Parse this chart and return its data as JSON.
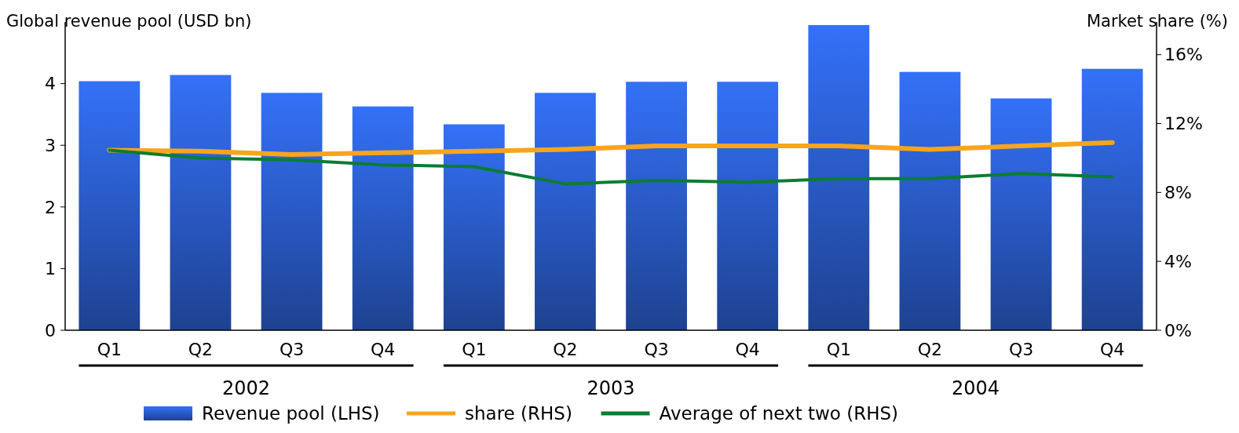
{
  "chart_data": {
    "type": "bar",
    "ylabel": "Global revenue pool (USD bn)",
    "y2label": "Market share (%)",
    "categories": [
      "Q1",
      "Q2",
      "Q3",
      "Q4",
      "Q1",
      "Q2",
      "Q3",
      "Q4",
      "Q1",
      "Q2",
      "Q3",
      "Q4"
    ],
    "series": [
      {
        "name": "Revenue pool (LHS)",
        "color": "#2a5bc8",
        "values": [
          4.04,
          4.14,
          3.85,
          3.63,
          3.34,
          3.85,
          4.03,
          4.03,
          4.95,
          4.19,
          3.76,
          4.24
        ]
      },
      {
        "name": "share (RHS)",
        "type": "line",
        "axis": "y2",
        "color": "#f7a51c",
        "values": [
          10.45,
          10.4,
          10.2,
          10.3,
          10.4,
          10.5,
          10.7,
          10.7,
          10.7,
          10.5,
          10.7,
          10.9
        ]
      },
      {
        "name": "Average of next two (RHS)",
        "type": "line",
        "axis": "y2",
        "color": "#0a7d32",
        "values": [
          10.45,
          10.0,
          9.9,
          9.6,
          9.5,
          8.5,
          8.7,
          8.6,
          8.8,
          8.8,
          9.1,
          8.9
        ]
      }
    ],
    "ylim": [
      0,
      5
    ],
    "yticks": [
      0,
      1,
      2,
      3,
      4
    ],
    "y2lim": [
      0,
      17.9
    ],
    "y2ticks": [
      {
        "value": 0,
        "label": "0%"
      },
      {
        "value": 4,
        "label": "4%"
      },
      {
        "value": 8,
        "label": "8%"
      },
      {
        "value": 12,
        "label": "12%"
      },
      {
        "value": 16,
        "label": "16%"
      }
    ],
    "annotations": [
      "2002",
      "2003",
      "2004"
    ],
    "legend": "bottom",
    "grid": false,
    "marker": "none",
    "line_style": "solid"
  }
}
